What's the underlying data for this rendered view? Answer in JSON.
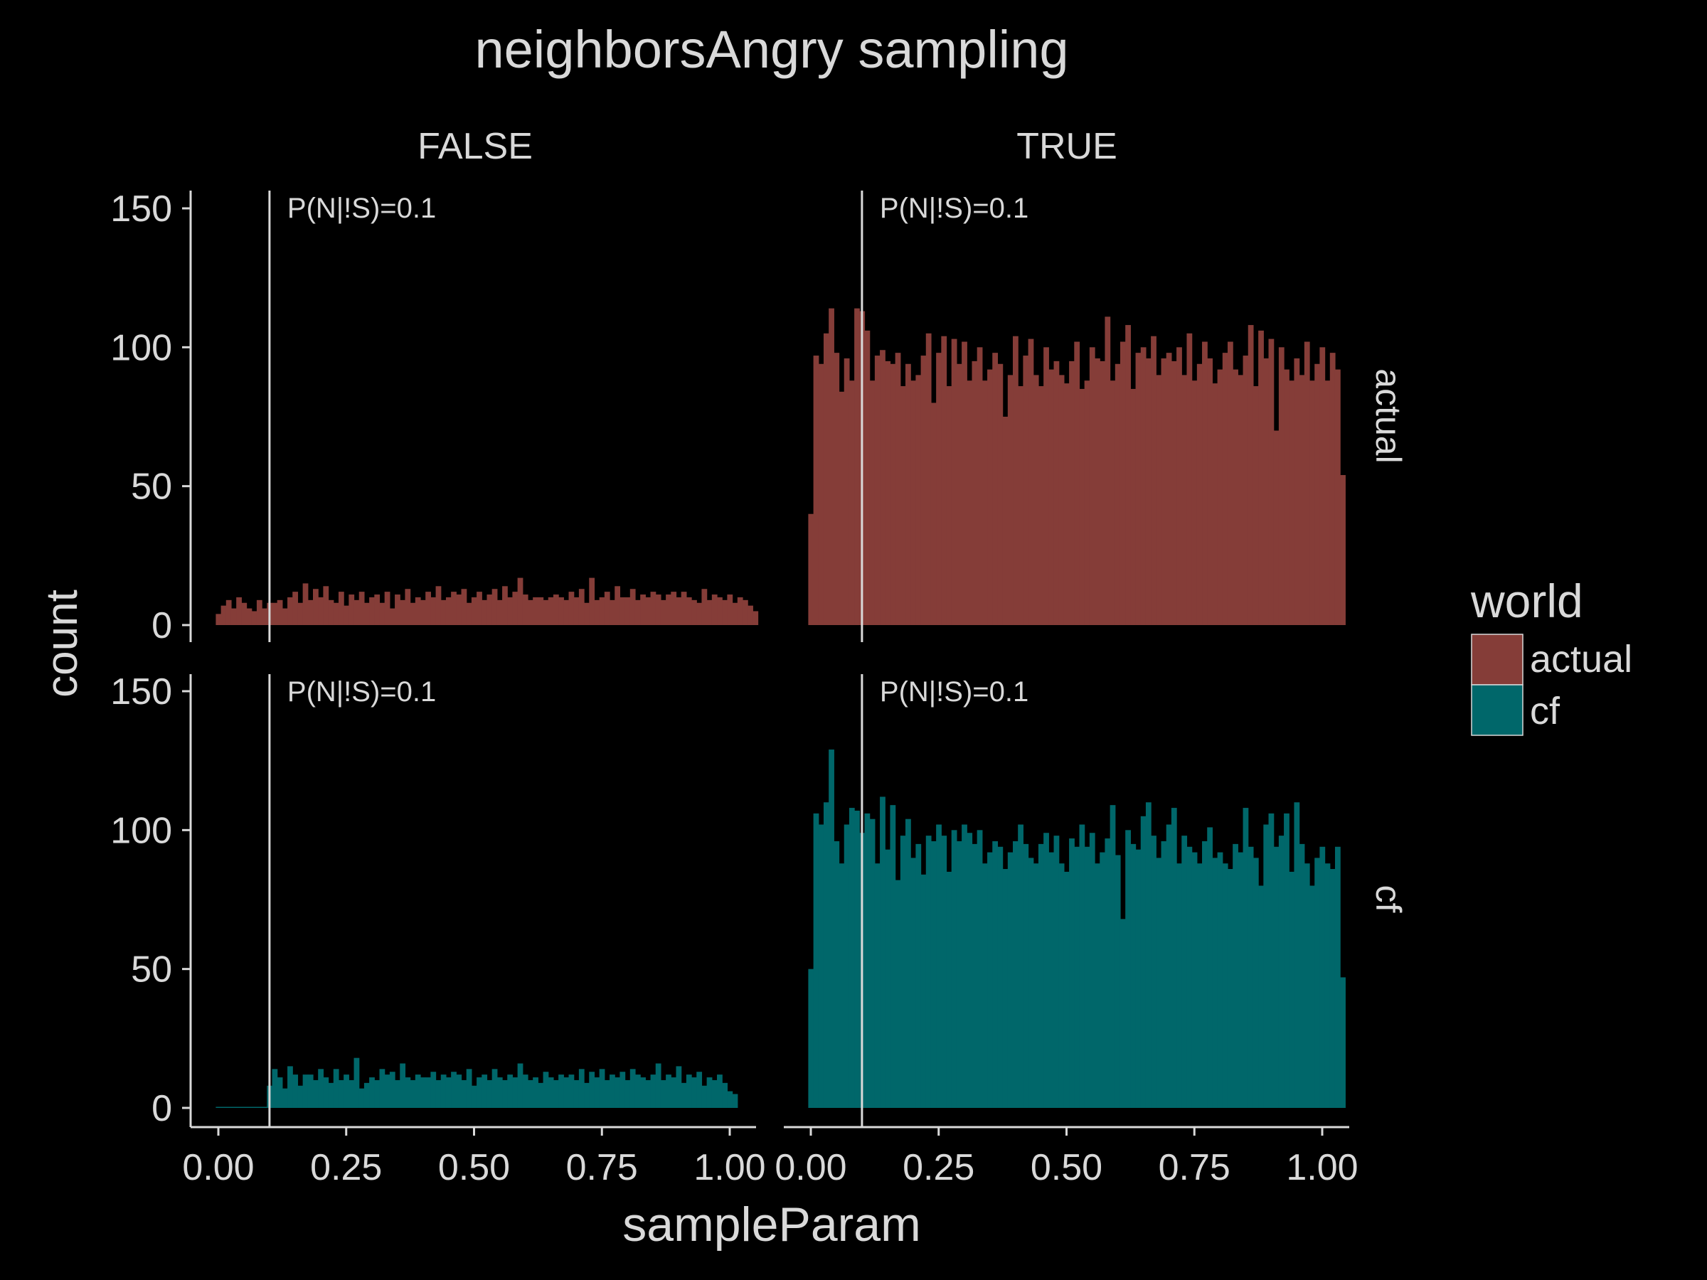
{
  "chart_data": {
    "type": "bar",
    "title": "neighborsAngry sampling",
    "xlabel": "sampleParam",
    "ylabel": "count",
    "xlim": [
      0,
      1
    ],
    "ylim": [
      0,
      150
    ],
    "x_ticks": [
      "0.00",
      "0.25",
      "0.50",
      "0.75",
      "1.00"
    ],
    "y_ticks": [
      "0",
      "50",
      "100",
      "150"
    ],
    "facet_columns": [
      "FALSE",
      "TRUE"
    ],
    "facet_rows": [
      "actual",
      "cf"
    ],
    "grid": false,
    "legend": {
      "title": "world",
      "position": "right",
      "entries": [
        {
          "name": "actual",
          "color": "#853d38"
        },
        {
          "name": "cf",
          "color": "#00676a"
        }
      ]
    },
    "annotation": {
      "x": 0.1,
      "text": "P(N|!S)=0.1"
    },
    "bin_start": 0,
    "bin_width": 0.01,
    "panels": [
      {
        "column": "FALSE",
        "row": "actual",
        "color": "#853d38",
        "values": [
          4,
          7,
          9,
          6,
          10,
          8,
          6,
          5,
          9,
          6,
          8,
          8,
          9,
          6,
          10,
          12,
          8,
          15,
          9,
          13,
          10,
          14,
          9,
          8,
          12,
          7,
          11,
          9,
          12,
          8,
          10,
          11,
          8,
          12,
          6,
          11,
          9,
          13,
          8,
          10,
          9,
          12,
          10,
          14,
          9,
          10,
          12,
          11,
          13,
          8,
          10,
          12,
          9,
          11,
          13,
          9,
          14,
          10,
          12,
          17,
          11,
          9,
          10,
          10,
          9,
          10,
          11,
          10,
          9,
          12,
          10,
          13,
          8,
          17,
          9,
          10,
          12,
          9,
          14,
          10,
          10,
          13,
          9,
          11,
          10,
          12,
          11,
          9,
          11,
          12,
          10,
          12,
          10,
          9,
          8,
          13,
          9,
          11,
          10,
          9,
          11,
          8,
          10,
          9,
          7,
          5
        ]
      },
      {
        "column": "TRUE",
        "row": "actual",
        "color": "#853d38",
        "values": [
          40,
          97,
          94,
          105,
          114,
          98,
          84,
          96,
          88,
          114,
          113,
          106,
          88,
          97,
          99,
          95,
          94,
          98,
          86,
          94,
          88,
          90,
          97,
          105,
          80,
          98,
          104,
          86,
          103,
          94,
          102,
          88,
          95,
          100,
          88,
          92,
          98,
          94,
          75,
          90,
          104,
          86,
          97,
          103,
          90,
          86,
          100,
          92,
          95,
          90,
          87,
          95,
          102,
          85,
          88,
          100,
          96,
          95,
          111,
          88,
          94,
          102,
          108,
          85,
          98,
          100,
          96,
          104,
          90,
          96,
          98,
          95,
          100,
          90,
          105,
          88,
          94,
          102,
          96,
          87,
          92,
          98,
          102,
          92,
          90,
          97,
          108,
          86,
          106,
          96,
          103,
          70,
          100,
          92,
          88,
          96,
          90,
          102,
          88,
          94,
          100,
          88,
          98,
          92,
          54
        ]
      },
      {
        "column": "FALSE",
        "row": "cf",
        "color": "#00676a",
        "values": [
          0,
          0,
          0,
          0,
          0,
          0,
          0,
          0,
          0,
          0,
          8,
          14,
          11,
          7,
          15,
          12,
          8,
          12,
          12,
          10,
          14,
          11,
          9,
          14,
          10,
          12,
          10,
          18,
          7,
          9,
          11,
          10,
          14,
          12,
          13,
          10,
          16,
          11,
          10,
          12,
          11,
          11,
          13,
          10,
          12,
          11,
          13,
          12,
          10,
          14,
          8,
          11,
          12,
          10,
          14,
          11,
          10,
          12,
          11,
          16,
          12,
          10,
          11,
          9,
          13,
          11,
          10,
          12,
          11,
          12,
          10,
          14,
          9,
          13,
          11,
          14,
          10,
          12,
          11,
          13,
          10,
          14,
          12,
          11,
          10,
          12,
          16,
          10,
          12,
          11,
          15,
          9,
          12,
          11,
          13,
          8,
          11,
          10,
          12,
          9,
          6,
          5
        ]
      },
      {
        "column": "TRUE",
        "row": "cf",
        "color": "#00676a",
        "values": [
          50,
          106,
          102,
          110,
          129,
          96,
          88,
          102,
          108,
          107,
          99,
          106,
          104,
          88,
          112,
          93,
          109,
          82,
          98,
          104,
          90,
          95,
          84,
          98,
          96,
          102,
          98,
          85,
          100,
          96,
          102,
          99,
          95,
          100,
          88,
          92,
          96,
          94,
          86,
          92,
          96,
          102,
          95,
          90,
          88,
          95,
          99,
          92,
          98,
          88,
          85,
          97,
          94,
          102,
          94,
          99,
          88,
          92,
          97,
          109,
          91,
          68,
          100,
          95,
          93,
          105,
          110,
          98,
          90,
          96,
          102,
          108,
          88,
          98,
          94,
          92,
          88,
          96,
          101,
          90,
          92,
          88,
          86,
          95,
          92,
          108,
          94,
          90,
          80,
          102,
          106,
          94,
          98,
          106,
          85,
          110,
          95,
          88,
          80,
          90,
          94,
          88,
          86,
          94,
          47
        ]
      }
    ]
  }
}
